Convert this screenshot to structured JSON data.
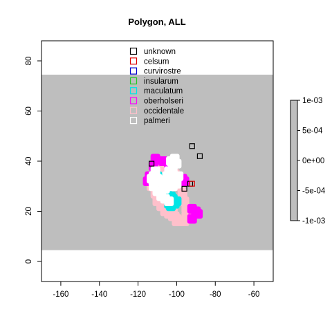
{
  "chart_data": {
    "type": "scatter",
    "title": "Polygon, ALL",
    "xlabel": "",
    "ylabel": "",
    "xlim": [
      -170,
      -50
    ],
    "ylim": [
      -8,
      88
    ],
    "x_ticks": [
      -160,
      -140,
      -120,
      -100,
      -80,
      -60
    ],
    "y_ticks": [
      0,
      20,
      40,
      60,
      80
    ],
    "band": {
      "y_from": 4.5,
      "y_to": 74.5,
      "color": "#bebebe"
    },
    "grid": false,
    "legend": {
      "placement": "top-center",
      "entries": [
        {
          "name": "unknown",
          "color": "#000000"
        },
        {
          "name": "celsum",
          "color": "#dd0000"
        },
        {
          "name": "curvirostre",
          "color": "#0000cc"
        },
        {
          "name": "insularum",
          "color": "#22cc22"
        },
        {
          "name": "maculatum",
          "color": "#00e5e5"
        },
        {
          "name": "oberholseri",
          "color": "#ff00ff"
        },
        {
          "name": "occidentale",
          "color": "#ffc0cb"
        },
        {
          "name": "palmeri",
          "color": "#ffffff"
        }
      ]
    },
    "colorbar": {
      "labels": [
        "1e-03",
        "5e-04",
        "0e+00",
        "-5e-04",
        "-1e-03"
      ],
      "values": [
        0.001,
        0.0005,
        0,
        -0.0005,
        -0.001
      ],
      "color": "#bebebe"
    },
    "series": [
      {
        "name": "unknown",
        "color": "#000000",
        "fill": false,
        "points": [
          [
            -113,
            39
          ],
          [
            -92,
            46
          ],
          [
            -88,
            42
          ],
          [
            -93,
            31
          ],
          [
            -96,
            29
          ]
        ]
      },
      {
        "name": "celsum",
        "color": "#dd0000",
        "fill": false,
        "points": [
          [
            -92,
            31
          ]
        ]
      },
      {
        "name": "occidentale",
        "color": "#ffc0cb",
        "fill": true,
        "points": [
          [
            -108,
            37
          ],
          [
            -107,
            34
          ],
          [
            -105,
            31
          ],
          [
            -104,
            28
          ],
          [
            -103,
            25
          ],
          [
            -103,
            22
          ],
          [
            -102,
            20
          ],
          [
            -101,
            18
          ],
          [
            -100,
            17
          ],
          [
            -98,
            16
          ],
          [
            -96,
            16
          ],
          [
            -95,
            18
          ],
          [
            -95,
            21
          ],
          [
            -96,
            24
          ],
          [
            -97,
            27
          ],
          [
            -98,
            30
          ],
          [
            -99,
            33
          ],
          [
            -101,
            35
          ],
          [
            -103,
            37
          ],
          [
            -105,
            38
          ],
          [
            -110,
            24
          ],
          [
            -108,
            22
          ],
          [
            -106,
            20
          ],
          [
            -104,
            19
          ],
          [
            -102,
            18
          ],
          [
            -113,
            30
          ],
          [
            -111,
            27
          ],
          [
            -109,
            25
          ],
          [
            -100,
            16
          ]
        ]
      },
      {
        "name": "oberholseri",
        "color": "#ff00ff",
        "fill": true,
        "points": [
          [
            -112,
            38
          ],
          [
            -111,
            41
          ],
          [
            -107,
            40
          ],
          [
            -104,
            37
          ],
          [
            -97,
            33
          ],
          [
            -99,
            32
          ],
          [
            -114,
            34
          ],
          [
            -115,
            32
          ],
          [
            -102,
            33
          ],
          [
            -96,
            32
          ],
          [
            -108,
            28
          ],
          [
            -92,
            21
          ],
          [
            -90,
            20
          ],
          [
            -92,
            17
          ],
          [
            -89,
            19
          ]
        ]
      },
      {
        "name": "maculatum",
        "color": "#00e5e5",
        "fill": true,
        "points": [
          [
            -110,
            34
          ],
          [
            -109,
            32
          ],
          [
            -105,
            28
          ],
          [
            -103,
            26
          ],
          [
            -102,
            25
          ],
          [
            -104,
            23
          ],
          [
            -103,
            22
          ],
          [
            -101,
            23
          ],
          [
            -100,
            24
          ],
          [
            -105,
            33
          ],
          [
            -107,
            27
          ]
        ]
      },
      {
        "name": "palmeri",
        "color": "#ffffff",
        "fill": true,
        "points": [
          [
            -111,
            36
          ],
          [
            -112,
            34
          ],
          [
            -113,
            33
          ],
          [
            -110,
            33
          ],
          [
            -108,
            32
          ],
          [
            -107,
            30
          ],
          [
            -106,
            29
          ],
          [
            -108,
            26
          ],
          [
            -110,
            28
          ],
          [
            -112,
            30
          ],
          [
            -104,
            31
          ],
          [
            -102,
            30
          ],
          [
            -100,
            31
          ],
          [
            -100,
            33
          ],
          [
            -102,
            35
          ],
          [
            -104,
            36
          ],
          [
            -102,
            38
          ],
          [
            -103,
            40
          ],
          [
            -101,
            41
          ],
          [
            -100,
            39
          ],
          [
            -99,
            34
          ],
          [
            -105,
            34
          ],
          [
            -106,
            25
          ],
          [
            -104,
            24
          ]
        ]
      }
    ]
  }
}
